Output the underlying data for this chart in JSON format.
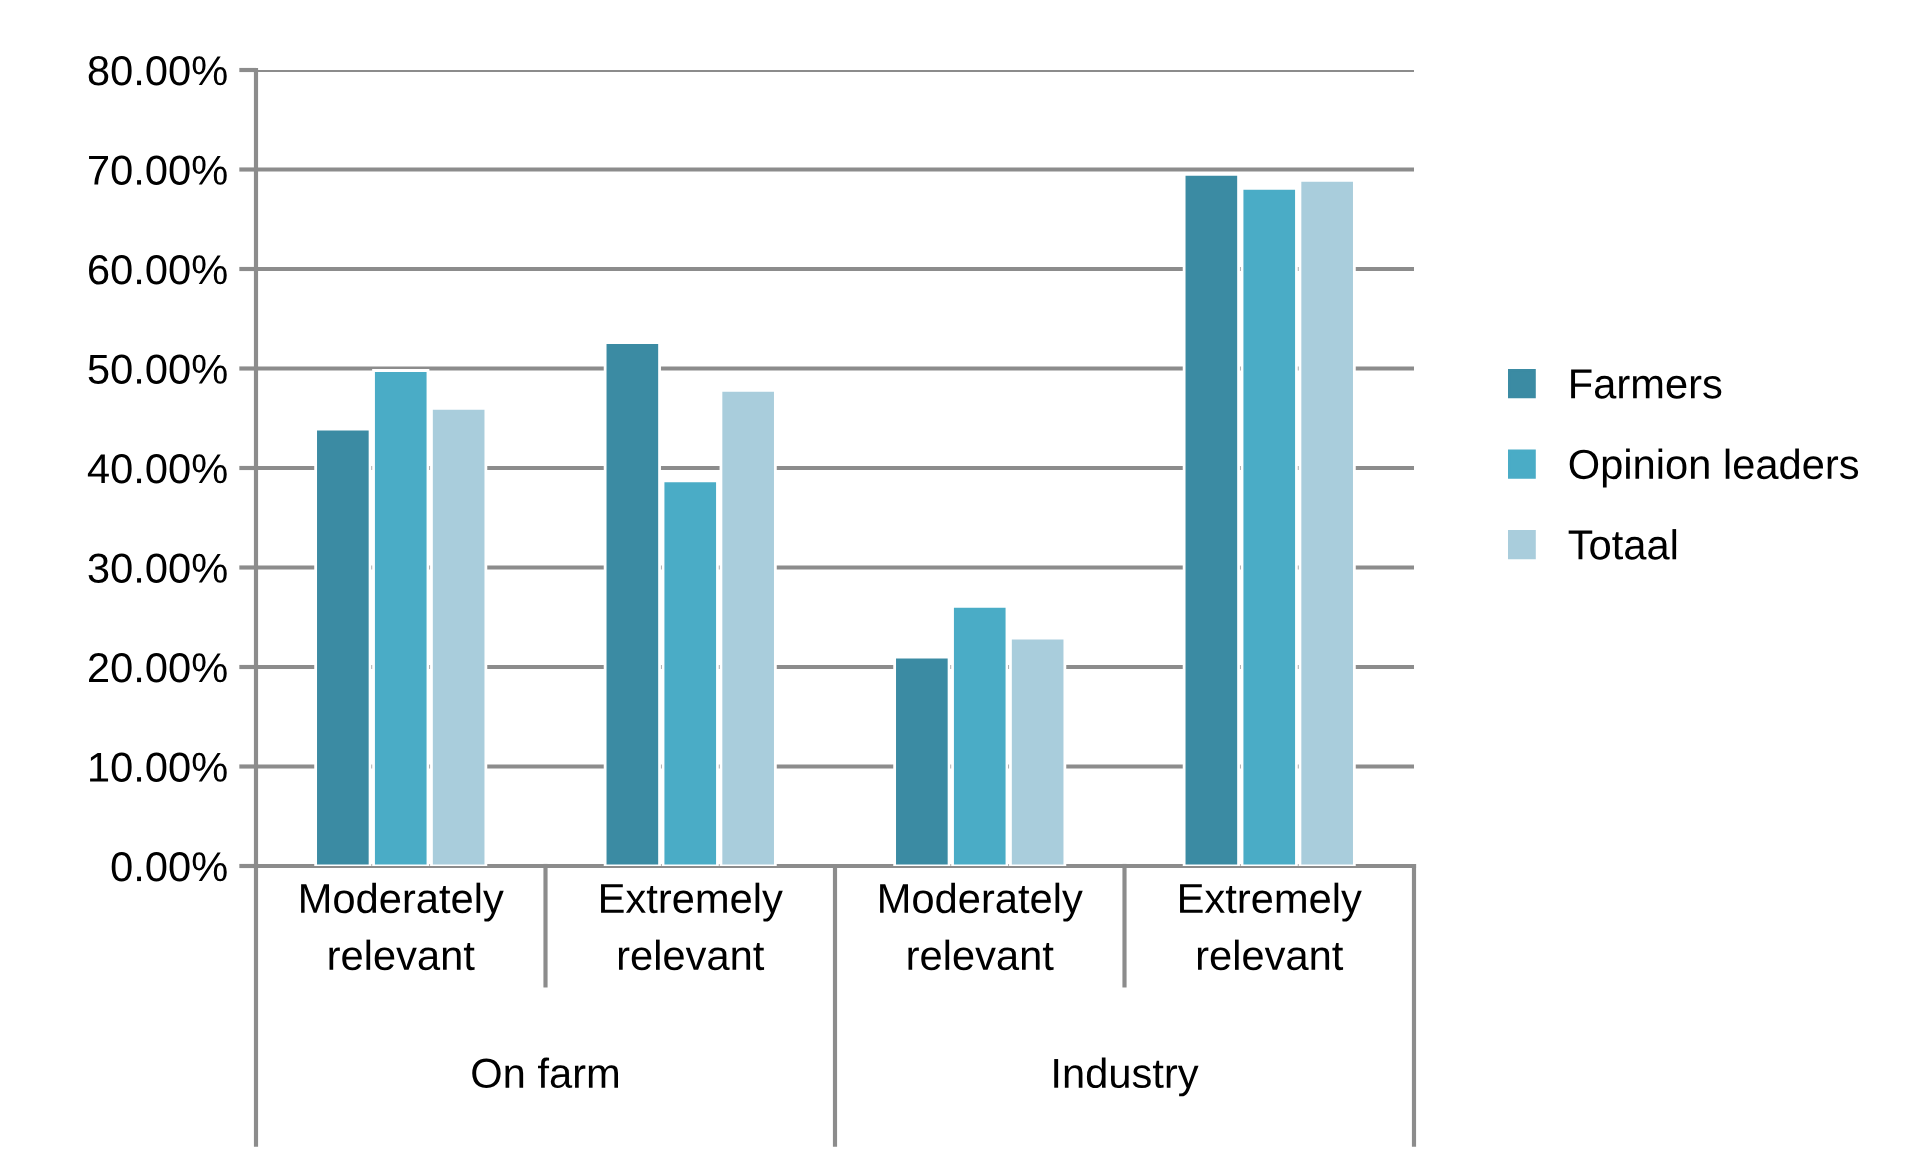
{
  "chart_data": {
    "type": "bar",
    "categories": [
      "Moderately relevant",
      "Extremely relevant",
      "Moderately relevant",
      "Extremely relevant"
    ],
    "series": [
      {
        "name": "Farmers",
        "color": "#3b8ba3",
        "values": [
          43.9,
          52.6,
          21.0,
          69.5
        ]
      },
      {
        "name": "Opinion leaders",
        "color": "#4aacc6",
        "values": [
          49.8,
          38.7,
          26.1,
          68.1
        ]
      },
      {
        "name": "Totaal",
        "color": "#a9cddc",
        "values": [
          46.0,
          47.8,
          22.9,
          68.9
        ]
      }
    ],
    "ylim": [
      0,
      80
    ],
    "yticks": [
      {
        "value": 0,
        "label": "0.00%"
      },
      {
        "value": 10,
        "label": "10.00%"
      },
      {
        "value": 20,
        "label": "20.00%"
      },
      {
        "value": 30,
        "label": "30.00%"
      },
      {
        "value": 40,
        "label": "40.00%"
      },
      {
        "value": 50,
        "label": "50.00%"
      },
      {
        "value": 60,
        "label": "60.00%"
      },
      {
        "value": 70,
        "label": "70.00%"
      },
      {
        "value": 80,
        "label": "80.00%"
      }
    ],
    "annotations": [
      "On farm",
      "Industry"
    ],
    "grid": "y",
    "legend": "right"
  }
}
